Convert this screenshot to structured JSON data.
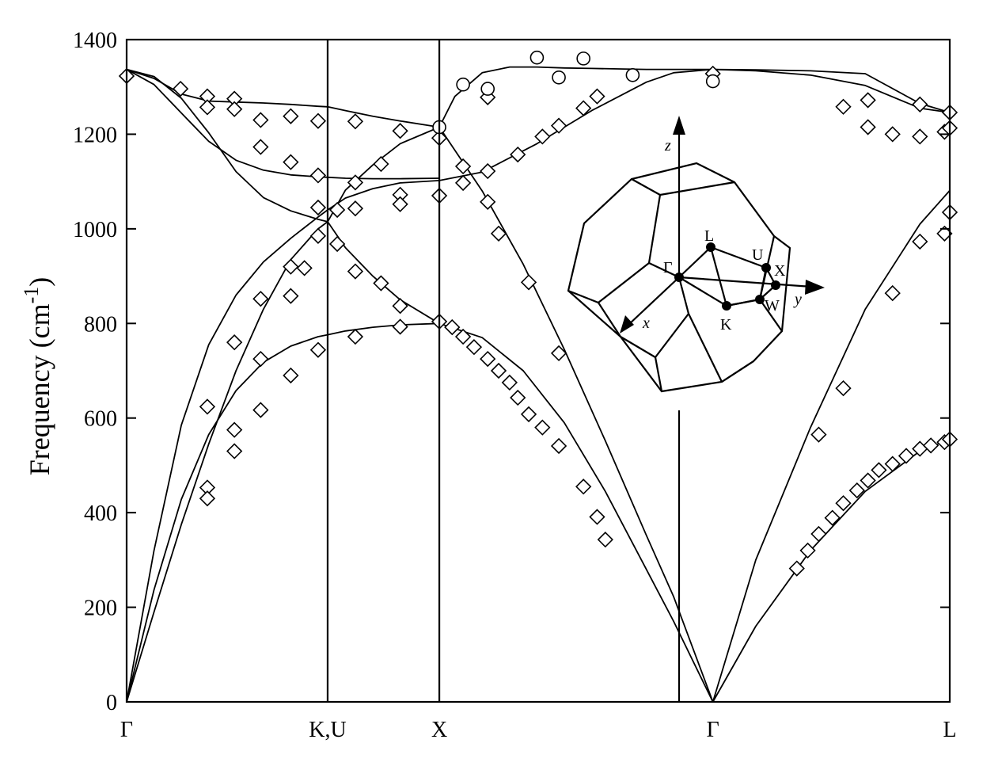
{
  "chart_data": {
    "type": "line",
    "title": "",
    "ylabel": "Frequency (cm",
    "ylabel_sup": "-1",
    "ylabel_close": ")",
    "ylim": [
      0,
      1400
    ],
    "yticks": [
      0,
      200,
      400,
      600,
      800,
      1000,
      1200,
      1400
    ],
    "grid": false,
    "path_points": [
      {
        "label": "Γ",
        "x": 0
      },
      {
        "label": "K,U",
        "x": 0.7348
      },
      {
        "label": "X",
        "x": 1.1431
      },
      {
        "label": "Γ",
        "x": 2.1431
      },
      {
        "label": "L",
        "x": 3.0091
      }
    ],
    "series": [
      {
        "x": [
          0,
          0.1,
          0.2,
          0.3,
          0.4,
          0.5,
          0.6,
          0.7,
          0.7348
        ],
        "values": [
          0,
          237,
          428,
          565,
          658,
          718,
          752,
          772,
          776
        ]
      },
      {
        "x": [
          0.7348,
          0.8,
          0.9,
          1.0,
          1.1431
        ],
        "values": [
          776,
          784,
          792,
          797,
          800
        ]
      },
      {
        "x": [
          1.1431,
          1.3,
          1.45,
          1.6,
          1.75,
          1.9,
          2.0,
          2.1431
        ],
        "values": [
          800,
          770,
          700,
          590,
          445,
          280,
          170,
          0
        ]
      },
      {
        "x": [
          0,
          0.1,
          0.2,
          0.3,
          0.4,
          0.5,
          0.6,
          0.7,
          0.7348
        ],
        "values": [
          0,
          190,
          375,
          545,
          700,
          830,
          935,
          1000,
          1015
        ]
      },
      {
        "x": [
          0.7348,
          0.8,
          0.9,
          1.0,
          1.1431
        ],
        "values": [
          1015,
          960,
          900,
          850,
          800
        ]
      },
      {
        "x": [
          0,
          0.1,
          0.2,
          0.3,
          0.4,
          0.5,
          0.6,
          0.7,
          0.7348
        ],
        "values": [
          0,
          320,
          585,
          755,
          860,
          930,
          980,
          1025,
          1040
        ]
      },
      {
        "x": [
          0.7348,
          0.8,
          0.9,
          1.0,
          1.1431
        ],
        "values": [
          1040,
          1065,
          1085,
          1097,
          1102
        ]
      },
      {
        "x": [
          1.1431,
          1.3,
          1.5,
          1.7,
          1.9,
          2.0,
          2.1431
        ],
        "values": [
          1102,
          1120,
          1180,
          1250,
          1310,
          1330,
          1337
        ]
      },
      {
        "x": [
          0,
          0.1,
          0.2,
          0.3,
          0.4,
          0.5,
          0.6,
          0.7,
          0.7348
        ],
        "values": [
          1337,
          1322,
          1276,
          1203,
          1121,
          1066,
          1038,
          1020,
          1015
        ]
      },
      {
        "x": [
          0.7348,
          0.8,
          0.9,
          1.0,
          1.1431
        ],
        "values": [
          1015,
          1082,
          1135,
          1180,
          1215
        ]
      },
      {
        "x": [
          1.1431,
          1.3,
          1.45,
          1.6,
          1.75,
          1.9,
          2.0,
          2.1431
        ],
        "values": [
          1215,
          1080,
          925,
          745,
          552,
          352,
          222,
          0
        ]
      },
      {
        "x": [
          0,
          0.1,
          0.2,
          0.3,
          0.4,
          0.5,
          0.6,
          0.7,
          0.7348
        ],
        "values": [
          1337,
          1305,
          1245,
          1185,
          1145,
          1124,
          1114,
          1110,
          1109
        ]
      },
      {
        "x": [
          0.7348,
          0.8,
          0.9,
          1.0,
          1.1431
        ],
        "values": [
          1109,
          1107,
          1106,
          1106,
          1107
        ]
      },
      {
        "x": [
          0,
          0.1,
          0.2,
          0.3,
          0.4,
          0.5,
          0.6,
          0.7,
          0.7348
        ],
        "values": [
          1337,
          1318,
          1285,
          1270,
          1268,
          1266,
          1263,
          1259,
          1258
        ]
      },
      {
        "x": [
          0.7348,
          0.8,
          0.9,
          1.0,
          1.1431
        ],
        "values": [
          1258,
          1250,
          1238,
          1228,
          1215
        ]
      },
      {
        "x": [
          1.1431,
          1.2,
          1.3,
          1.4,
          1.5,
          1.6,
          1.7,
          1.8,
          1.9,
          2.0,
          2.1431
        ],
        "values": [
          1215,
          1280,
          1330,
          1342,
          1342,
          1340,
          1339,
          1338,
          1337,
          1337,
          1337
        ]
      },
      {
        "x": [
          2.1431,
          2.3,
          2.5,
          2.7,
          2.9,
          3.0091
        ],
        "values": [
          1337,
          1336,
          1334,
          1328,
          1265,
          1246
        ]
      },
      {
        "x": [
          2.1431,
          2.3,
          2.5,
          2.7,
          2.9,
          3.0091
        ],
        "values": [
          1337,
          1334,
          1325,
          1303,
          1255,
          1246
        ]
      },
      {
        "x": [
          2.1431,
          2.3,
          2.5,
          2.7,
          2.9,
          3.0091
        ],
        "values": [
          0,
          300,
          580,
          830,
          1010,
          1081
        ]
      },
      {
        "x": [
          2.1431,
          2.3,
          2.5,
          2.7,
          2.9,
          3.0091
        ],
        "values": [
          0,
          160,
          320,
          445,
          530,
          555
        ]
      }
    ],
    "experimental_diamonds": [
      [
        0,
        1323
      ],
      [
        0.197,
        1296
      ],
      [
        0.295,
        1280
      ],
      [
        0.295,
        1257
      ],
      [
        0.394,
        1275
      ],
      [
        0.394,
        1253
      ],
      [
        0.49,
        1230
      ],
      [
        0.49,
        1173
      ],
      [
        0.6,
        1238
      ],
      [
        0.6,
        1141
      ],
      [
        0.7,
        1228
      ],
      [
        0.7,
        1113
      ],
      [
        0.7,
        1045
      ],
      [
        0.7,
        985
      ],
      [
        0.6,
        920
      ],
      [
        0.65,
        917
      ],
      [
        0.6,
        858
      ],
      [
        0.49,
        852
      ],
      [
        0.49,
        725
      ],
      [
        0.6,
        690
      ],
      [
        0.394,
        760
      ],
      [
        0.295,
        624
      ],
      [
        0.394,
        575
      ],
      [
        0.394,
        530
      ],
      [
        0.295,
        453
      ],
      [
        0.295,
        430
      ],
      [
        0.49,
        617
      ],
      [
        0.7,
        744
      ],
      [
        0.77,
        1040
      ],
      [
        0.77,
        968
      ],
      [
        0.836,
        1227
      ],
      [
        0.836,
        1098
      ],
      [
        0.836,
        1043
      ],
      [
        0.836,
        910
      ],
      [
        0.836,
        772
      ],
      [
        0.93,
        1137
      ],
      [
        0.93,
        885
      ],
      [
        1.0,
        1207
      ],
      [
        1.0,
        1072
      ],
      [
        1.0,
        1052
      ],
      [
        1.0,
        837
      ],
      [
        1.0,
        793
      ],
      [
        1.1431,
        1192
      ],
      [
        1.1431,
        1070
      ],
      [
        1.1431,
        804
      ],
      [
        1.19,
        792
      ],
      [
        1.23,
        1132
      ],
      [
        1.23,
        1097
      ],
      [
        1.23,
        772
      ],
      [
        1.27,
        750
      ],
      [
        1.32,
        1278
      ],
      [
        1.32,
        1122
      ],
      [
        1.32,
        1057
      ],
      [
        1.32,
        725
      ],
      [
        1.36,
        990
      ],
      [
        1.36,
        700
      ],
      [
        1.4,
        675
      ],
      [
        1.43,
        1157
      ],
      [
        1.43,
        643
      ],
      [
        1.47,
        887
      ],
      [
        1.47,
        608
      ],
      [
        1.52,
        1195
      ],
      [
        1.52,
        580
      ],
      [
        1.58,
        1218
      ],
      [
        1.58,
        737
      ],
      [
        1.58,
        541
      ],
      [
        1.67,
        1255
      ],
      [
        1.67,
        455
      ],
      [
        1.72,
        1280
      ],
      [
        1.72,
        391
      ],
      [
        1.75,
        343
      ],
      [
        2.1431,
        1328
      ],
      [
        2.45,
        282
      ],
      [
        2.49,
        320
      ],
      [
        2.53,
        355
      ],
      [
        2.53,
        565
      ],
      [
        2.58,
        389
      ],
      [
        2.62,
        420
      ],
      [
        2.62,
        663
      ],
      [
        2.62,
        1258
      ],
      [
        2.67,
        447
      ],
      [
        2.71,
        468
      ],
      [
        2.71,
        1272
      ],
      [
        2.71,
        1215
      ],
      [
        2.75,
        490
      ],
      [
        2.8,
        503
      ],
      [
        2.8,
        864
      ],
      [
        2.8,
        1200
      ],
      [
        2.85,
        520
      ],
      [
        2.9,
        535
      ],
      [
        2.9,
        973
      ],
      [
        2.9,
        1263
      ],
      [
        2.9,
        1195
      ],
      [
        2.94,
        542
      ],
      [
        2.99,
        549
      ],
      [
        2.99,
        990
      ],
      [
        2.99,
        1205
      ],
      [
        3.0091,
        555
      ],
      [
        3.0091,
        1035
      ],
      [
        3.0091,
        1213
      ],
      [
        3.0091,
        1246
      ]
    ],
    "experimental_circles": [
      [
        1.1431,
        1215
      ],
      [
        1.23,
        1305
      ],
      [
        1.32,
        1296
      ],
      [
        1.5,
        1362
      ],
      [
        1.58,
        1320
      ],
      [
        1.67,
        1360
      ],
      [
        1.85,
        1325
      ],
      [
        2.1431,
        1312
      ]
    ],
    "inset": {
      "axis_labels": [
        "x",
        "y",
        "z"
      ],
      "point_labels": [
        "Γ",
        "L",
        "U",
        "X",
        "K",
        "W"
      ]
    }
  }
}
